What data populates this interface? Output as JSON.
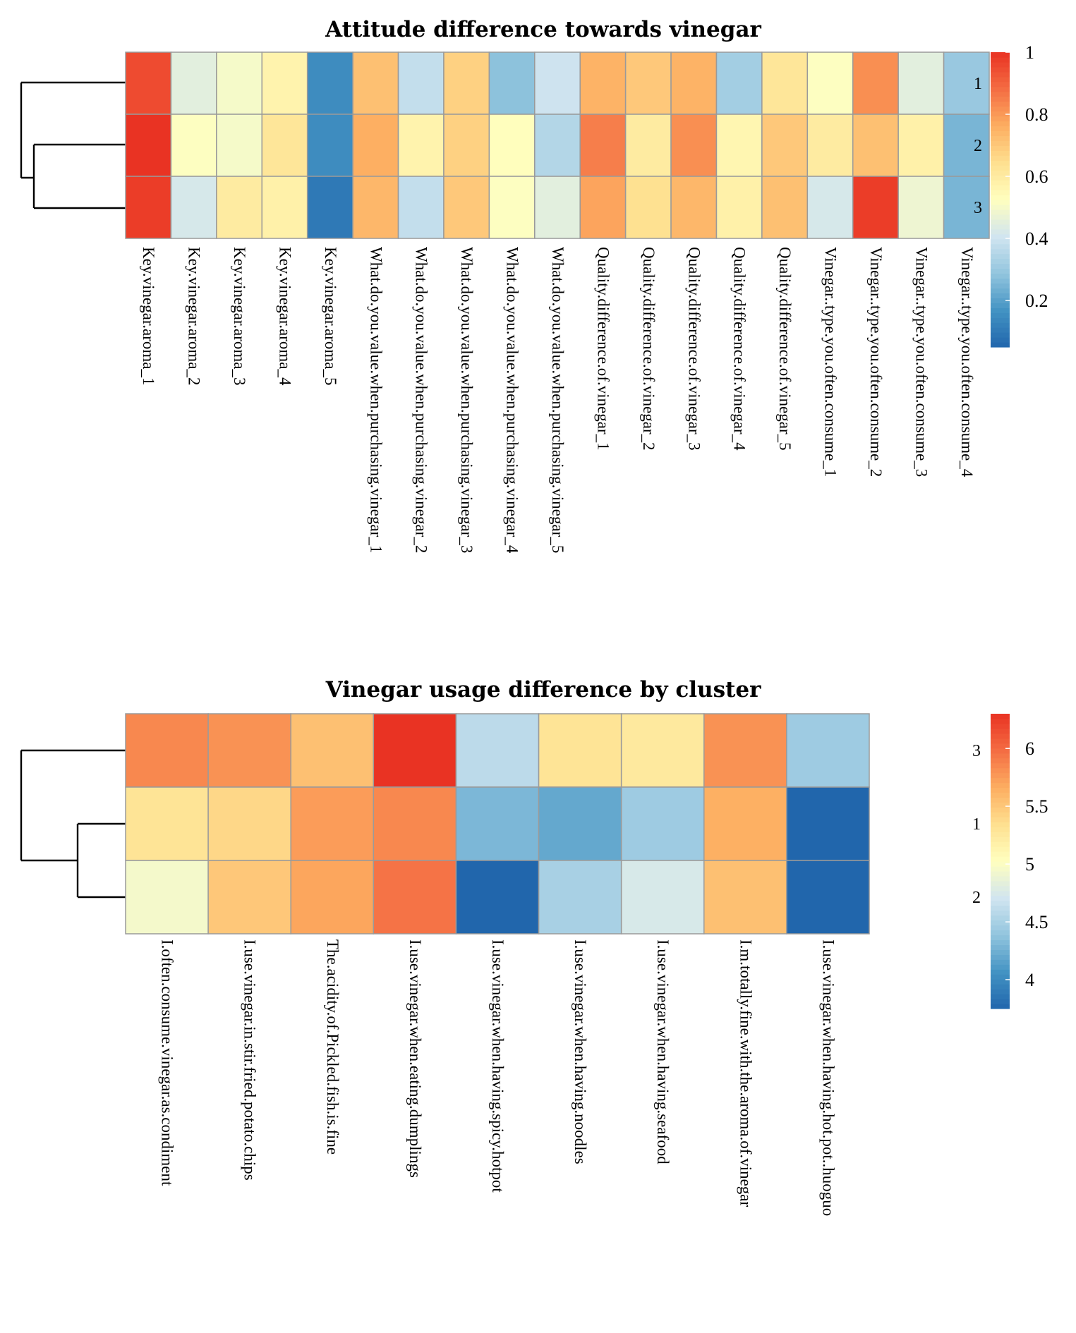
{
  "chart_data": [
    {
      "type": "heatmap",
      "title": "Attitude difference towards vinegar",
      "rows": [
        "1",
        "2",
        "3"
      ],
      "columns": [
        "Key.vinegar.aroma_1",
        "Key.vinegar.aroma_2",
        "Key.vinegar.aroma_3",
        "Key.vinegar.aroma_4",
        "Key.vinegar.aroma_5",
        "What.do.you.value.when.purchasing.vinegar_1",
        "What.do.you.value.when.purchasing.vinegar_2",
        "What.do.you.value.when.purchasing.vinegar_3",
        "What.do.you.value.when.purchasing.vinegar_4",
        "What.do.you.value.when.purchasing.vinegar_5",
        "Quality.difference.of.vinegar_1",
        "Quality.difference.of.vinegar_2",
        "Quality.difference.of.vinegar_3",
        "Quality.difference.of.vinegar_4",
        "Quality.difference.of.vinegar_5",
        "Vinegar..type.you.often.consume_1",
        "Vinegar..type.you.often.consume_2",
        "Vinegar..type.you.often.consume_3",
        "Vinegar..type.you.often.consume_4"
      ],
      "values": [
        [
          0.95,
          0.45,
          0.5,
          0.57,
          0.15,
          0.72,
          0.38,
          0.68,
          0.28,
          0.4,
          0.75,
          0.7,
          0.75,
          0.32,
          0.62,
          0.52,
          0.82,
          0.45,
          0.3
        ],
        [
          1.0,
          0.52,
          0.5,
          0.62,
          0.15,
          0.76,
          0.57,
          0.68,
          0.53,
          0.35,
          0.85,
          0.6,
          0.82,
          0.56,
          0.7,
          0.6,
          0.72,
          0.58,
          0.25
        ],
        [
          0.98,
          0.42,
          0.6,
          0.58,
          0.1,
          0.74,
          0.38,
          0.7,
          0.52,
          0.45,
          0.78,
          0.64,
          0.74,
          0.58,
          0.72,
          0.42,
          0.98,
          0.48,
          0.25
        ]
      ],
      "color_range": [
        0.05,
        1.0
      ],
      "colorbar_ticks": [
        1,
        0.8,
        0.6,
        0.4,
        0.2
      ],
      "colorbar_tick_labels": [
        "1",
        "0.8",
        "0.6",
        "0.4",
        "0.2"
      ],
      "colormap": [
        "#2166ac",
        "#4393c3",
        "#92c5de",
        "#d1e5f0",
        "#ffffbf",
        "#fee090",
        "#fdae61",
        "#f46d43",
        "#e93323"
      ]
    },
    {
      "type": "heatmap",
      "title": "Vinegar usage difference by cluster",
      "rows": [
        "3",
        "1",
        "2"
      ],
      "columns": [
        "I.often.consume.vinegar.as.condiment",
        "I.use.vinegar.in.stir.fried.potato.chips",
        "The.acidity.of.Pickled.fish.is.fine",
        "I.use.vinegar.when.eating.dumplings",
        "I.use.vinegar.when.having.spicy.hotpot",
        "I.use.vinegar.when.having.noodles",
        "I.use.vinegar.when.having.seafood",
        "I.m.totally.fine.with.the.aroma.of.vinegar",
        "I.use.vinegar.when.having.hot.pot..huoguo"
      ],
      "values": [
        [
          5.85,
          5.8,
          5.55,
          6.3,
          4.6,
          5.3,
          5.25,
          5.8,
          4.45
        ],
        [
          5.3,
          5.4,
          5.75,
          5.85,
          4.3,
          4.2,
          4.45,
          5.65,
          3.75
        ],
        [
          4.95,
          5.5,
          5.7,
          5.95,
          3.75,
          4.5,
          4.75,
          5.55,
          3.75
        ]
      ],
      "color_range": [
        3.75,
        6.3
      ],
      "colorbar_ticks": [
        6,
        5.5,
        5,
        4.5,
        4
      ],
      "colorbar_tick_labels": [
        "6",
        "5.5",
        "5",
        "4.5",
        "4"
      ],
      "colormap": [
        "#2166ac",
        "#4393c3",
        "#92c5de",
        "#d1e5f0",
        "#ffffbf",
        "#fee090",
        "#fdae61",
        "#f46d43",
        "#e93323"
      ]
    }
  ]
}
